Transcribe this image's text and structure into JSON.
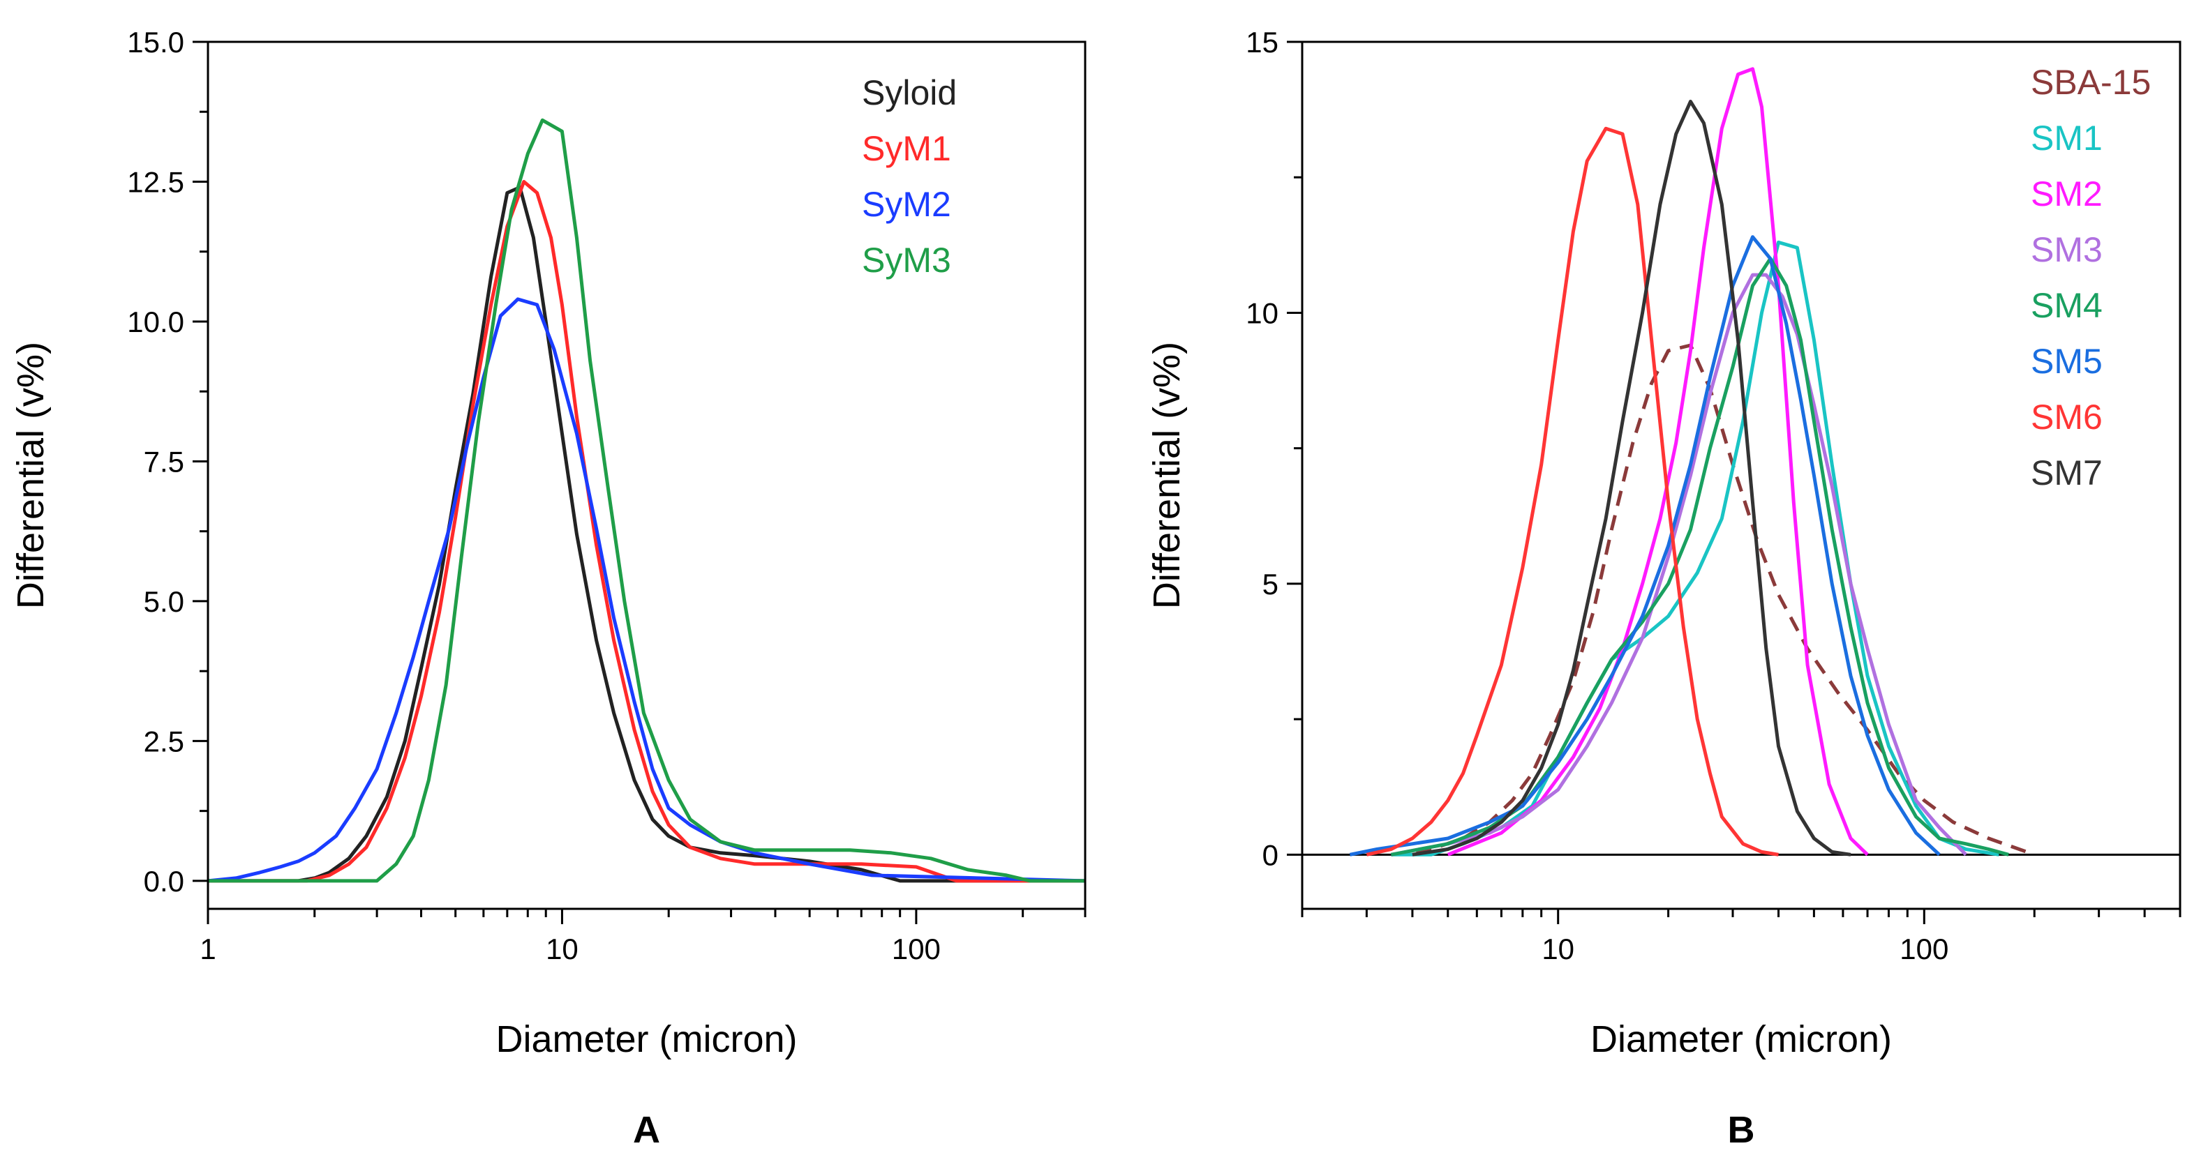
{
  "chart_data": [
    {
      "type": "line",
      "panel_label": "A",
      "xlabel": "Diameter (micron)",
      "ylabel": "Differential (v%)",
      "xscale": "log",
      "xlim": [
        1,
        300
      ],
      "ylim": [
        -0.5,
        15.0
      ],
      "xticks": [
        1,
        10,
        100
      ],
      "xtick_labels": [
        "1",
        "10",
        "100"
      ],
      "yticks": [
        0,
        2.5,
        5,
        7.5,
        10,
        12.5,
        15
      ],
      "ytick_labels": [
        "0.0",
        "2.5",
        "5.0",
        "7.5",
        "10.0",
        "12.5",
        "15.0"
      ],
      "legend_position": "top-right",
      "series": [
        {
          "name": "Syloid",
          "color": "#222222",
          "dash": false,
          "x": [
            1,
            1.8,
            2.0,
            2.2,
            2.5,
            2.8,
            3.2,
            3.6,
            4.0,
            4.5,
            5.0,
            5.6,
            6.3,
            7.0,
            7.6,
            8.3,
            9.0,
            10,
            11,
            12.5,
            14,
            16,
            18,
            20,
            23,
            28,
            35,
            50,
            70,
            90,
            300
          ],
          "y": [
            0,
            0,
            0.05,
            0.15,
            0.4,
            0.8,
            1.5,
            2.5,
            3.8,
            5.3,
            7.0,
            8.7,
            10.8,
            12.3,
            12.4,
            11.5,
            10.0,
            8.0,
            6.2,
            4.3,
            3.0,
            1.8,
            1.1,
            0.8,
            0.6,
            0.5,
            0.45,
            0.35,
            0.2,
            0,
            0
          ]
        },
        {
          "name": "SyM1",
          "color": "#ff2a2a",
          "dash": false,
          "x": [
            1,
            1.9,
            2.2,
            2.5,
            2.8,
            3.2,
            3.6,
            4.0,
            4.5,
            5.0,
            5.6,
            6.3,
            7.0,
            7.8,
            8.5,
            9.3,
            10,
            11,
            12.5,
            14,
            16,
            18,
            20,
            23,
            28,
            35,
            50,
            70,
            100,
            130,
            300
          ],
          "y": [
            0,
            0,
            0.1,
            0.3,
            0.6,
            1.3,
            2.2,
            3.3,
            4.8,
            6.5,
            8.5,
            10.3,
            11.7,
            12.5,
            12.3,
            11.5,
            10.3,
            8.3,
            6.0,
            4.3,
            2.7,
            1.6,
            1.0,
            0.6,
            0.4,
            0.3,
            0.3,
            0.3,
            0.25,
            0,
            0
          ]
        },
        {
          "name": "SyM2",
          "color": "#1a3cff",
          "dash": false,
          "x": [
            1,
            1.2,
            1.4,
            1.6,
            1.8,
            2.0,
            2.3,
            2.6,
            3.0,
            3.4,
            3.8,
            4.2,
            4.8,
            5.4,
            6.0,
            6.7,
            7.5,
            8.5,
            9.5,
            11,
            12.5,
            14,
            16,
            18,
            20,
            23,
            28,
            35,
            50,
            75,
            300
          ],
          "y": [
            0,
            0.05,
            0.15,
            0.25,
            0.35,
            0.5,
            0.8,
            1.3,
            2.0,
            3.0,
            4.0,
            5.0,
            6.3,
            7.8,
            9.0,
            10.1,
            10.4,
            10.3,
            9.5,
            8.0,
            6.3,
            4.7,
            3.2,
            2.0,
            1.3,
            1.0,
            0.7,
            0.5,
            0.3,
            0.1,
            0
          ]
        },
        {
          "name": "SyM3",
          "color": "#1f9e48",
          "dash": false,
          "x": [
            1,
            3.0,
            3.4,
            3.8,
            4.2,
            4.7,
            5.2,
            5.8,
            6.5,
            7.2,
            8.0,
            8.8,
            10,
            11,
            12,
            13.5,
            15,
            17,
            20,
            23,
            28,
            35,
            50,
            65,
            85,
            110,
            140,
            180,
            210,
            300
          ],
          "y": [
            0,
            0,
            0.3,
            0.8,
            1.8,
            3.5,
            5.8,
            8.2,
            10.3,
            12.0,
            13.0,
            13.6,
            13.4,
            11.5,
            9.3,
            7.0,
            5.0,
            3.0,
            1.8,
            1.1,
            0.7,
            0.55,
            0.55,
            0.55,
            0.5,
            0.4,
            0.2,
            0.1,
            0,
            0
          ]
        }
      ]
    },
    {
      "type": "line",
      "panel_label": "B",
      "xlabel": "Diameter (micron)",
      "ylabel": "Differential (v%)",
      "xscale": "log",
      "xlim": [
        2,
        500
      ],
      "ylim": [
        -1,
        15
      ],
      "xticks": [
        10,
        100
      ],
      "xtick_labels": [
        "10",
        "100"
      ],
      "yticks": [
        0,
        5,
        10,
        15
      ],
      "ytick_labels": [
        "0",
        "5",
        "10",
        "15"
      ],
      "legend_position": "top-right",
      "series": [
        {
          "name": "SBA-15",
          "color": "#8b3a3a",
          "dash": true,
          "x": [
            3.5,
            4.5,
            5.5,
            6.5,
            7.5,
            8.5,
            9.5,
            11,
            12.5,
            14,
            16,
            18,
            20,
            23,
            26,
            30,
            35,
            40,
            48,
            58,
            70,
            85,
            100,
            120,
            150,
            200
          ],
          "y": [
            0,
            0.1,
            0.3,
            0.6,
            1.0,
            1.5,
            2.2,
            3.2,
            4.5,
            6.0,
            7.6,
            8.7,
            9.3,
            9.4,
            8.6,
            7.2,
            5.8,
            4.8,
            3.8,
            3.0,
            2.3,
            1.5,
            1.0,
            0.6,
            0.3,
            0
          ]
        },
        {
          "name": "SM1",
          "color": "#19c4c4",
          "dash": false,
          "x": [
            3.5,
            4.5,
            5.5,
            7,
            8.5,
            10,
            12,
            14,
            17,
            20,
            24,
            28,
            32,
            36,
            40,
            45,
            50,
            56,
            63,
            70,
            80,
            95,
            110,
            130,
            160
          ],
          "y": [
            0,
            0,
            0.2,
            0.5,
            0.9,
            1.8,
            2.8,
            3.6,
            4.0,
            4.4,
            5.2,
            6.2,
            8.0,
            10.0,
            11.3,
            11.2,
            9.5,
            7.2,
            5.0,
            3.3,
            2.0,
            0.9,
            0.3,
            0.1,
            0
          ]
        },
        {
          "name": "SM2",
          "color": "#ff1aff",
          "dash": false,
          "x": [
            5,
            7,
            9,
            11,
            13,
            15,
            17,
            19,
            21,
            23,
            25,
            28,
            31,
            34,
            36,
            40,
            44,
            48,
            55,
            63,
            70
          ],
          "y": [
            0,
            0.4,
            1.0,
            1.8,
            2.7,
            3.8,
            5.0,
            6.2,
            7.6,
            9.3,
            11.2,
            13.4,
            14.4,
            14.5,
            13.8,
            10.5,
            6.5,
            3.5,
            1.3,
            0.3,
            0
          ]
        },
        {
          "name": "SM3",
          "color": "#b070e0",
          "dash": false,
          "x": [
            3.5,
            5,
            6.5,
            8,
            10,
            12,
            14,
            17,
            20,
            23,
            26,
            30,
            34,
            37,
            41,
            45,
            50,
            56,
            63,
            70,
            80,
            95,
            110,
            130
          ],
          "y": [
            0,
            0.2,
            0.4,
            0.7,
            1.2,
            2.0,
            2.8,
            4.0,
            5.5,
            7.0,
            8.5,
            10.0,
            10.7,
            10.7,
            10.3,
            9.6,
            8.3,
            6.8,
            5.0,
            3.8,
            2.4,
            1.0,
            0.5,
            0
          ]
        },
        {
          "name": "SM4",
          "color": "#19a060",
          "dash": false,
          "x": [
            3.5,
            5,
            6.5,
            8,
            10,
            12,
            14,
            17,
            20,
            23,
            26,
            30,
            34,
            38,
            42,
            46,
            50,
            56,
            63,
            70,
            80,
            95,
            110,
            130,
            150,
            170
          ],
          "y": [
            0,
            0.2,
            0.5,
            0.9,
            1.8,
            2.8,
            3.6,
            4.3,
            5.0,
            6.0,
            7.5,
            9.0,
            10.5,
            11.0,
            10.5,
            9.5,
            8.0,
            6.0,
            4.2,
            2.8,
            1.6,
            0.7,
            0.3,
            0.2,
            0.1,
            0
          ]
        },
        {
          "name": "SM5",
          "color": "#1a6ee0",
          "dash": false,
          "x": [
            2.7,
            3.2,
            4,
            5,
            6.5,
            8,
            10,
            12,
            14,
            17,
            20,
            23,
            26,
            30,
            34,
            38,
            42,
            46,
            50,
            56,
            63,
            70,
            80,
            95,
            110
          ],
          "y": [
            0,
            0.1,
            0.2,
            0.3,
            0.6,
            0.9,
            1.7,
            2.5,
            3.3,
            4.4,
            5.7,
            7.2,
            8.8,
            10.5,
            11.4,
            11.0,
            9.8,
            8.4,
            7.0,
            5.0,
            3.3,
            2.2,
            1.2,
            0.4,
            0
          ]
        },
        {
          "name": "SM6",
          "color": "#ff3535",
          "dash": false,
          "x": [
            3,
            3.5,
            4,
            4.5,
            5,
            5.5,
            6,
            7,
            8,
            9,
            10,
            11,
            12,
            13.5,
            15,
            16.5,
            18,
            20,
            22,
            24,
            26,
            28,
            32,
            36,
            40
          ],
          "y": [
            0,
            0.1,
            0.3,
            0.6,
            1.0,
            1.5,
            2.2,
            3.5,
            5.3,
            7.2,
            9.5,
            11.5,
            12.8,
            13.4,
            13.3,
            12.0,
            9.5,
            6.5,
            4.2,
            2.5,
            1.5,
            0.7,
            0.2,
            0.05,
            0
          ]
        },
        {
          "name": "SM7",
          "color": "#333333",
          "dash": false,
          "x": [
            4,
            5,
            6,
            7,
            8,
            9,
            10,
            11,
            12,
            13.5,
            15,
            17,
            19,
            21,
            23,
            25,
            28,
            31,
            34,
            37,
            40,
            45,
            50,
            56,
            63
          ],
          "y": [
            0,
            0.1,
            0.3,
            0.6,
            1.0,
            1.6,
            2.4,
            3.4,
            4.6,
            6.2,
            8.0,
            10.0,
            12.0,
            13.3,
            13.9,
            13.5,
            12.0,
            9.5,
            6.5,
            3.8,
            2.0,
            0.8,
            0.3,
            0.05,
            0
          ]
        }
      ]
    }
  ]
}
